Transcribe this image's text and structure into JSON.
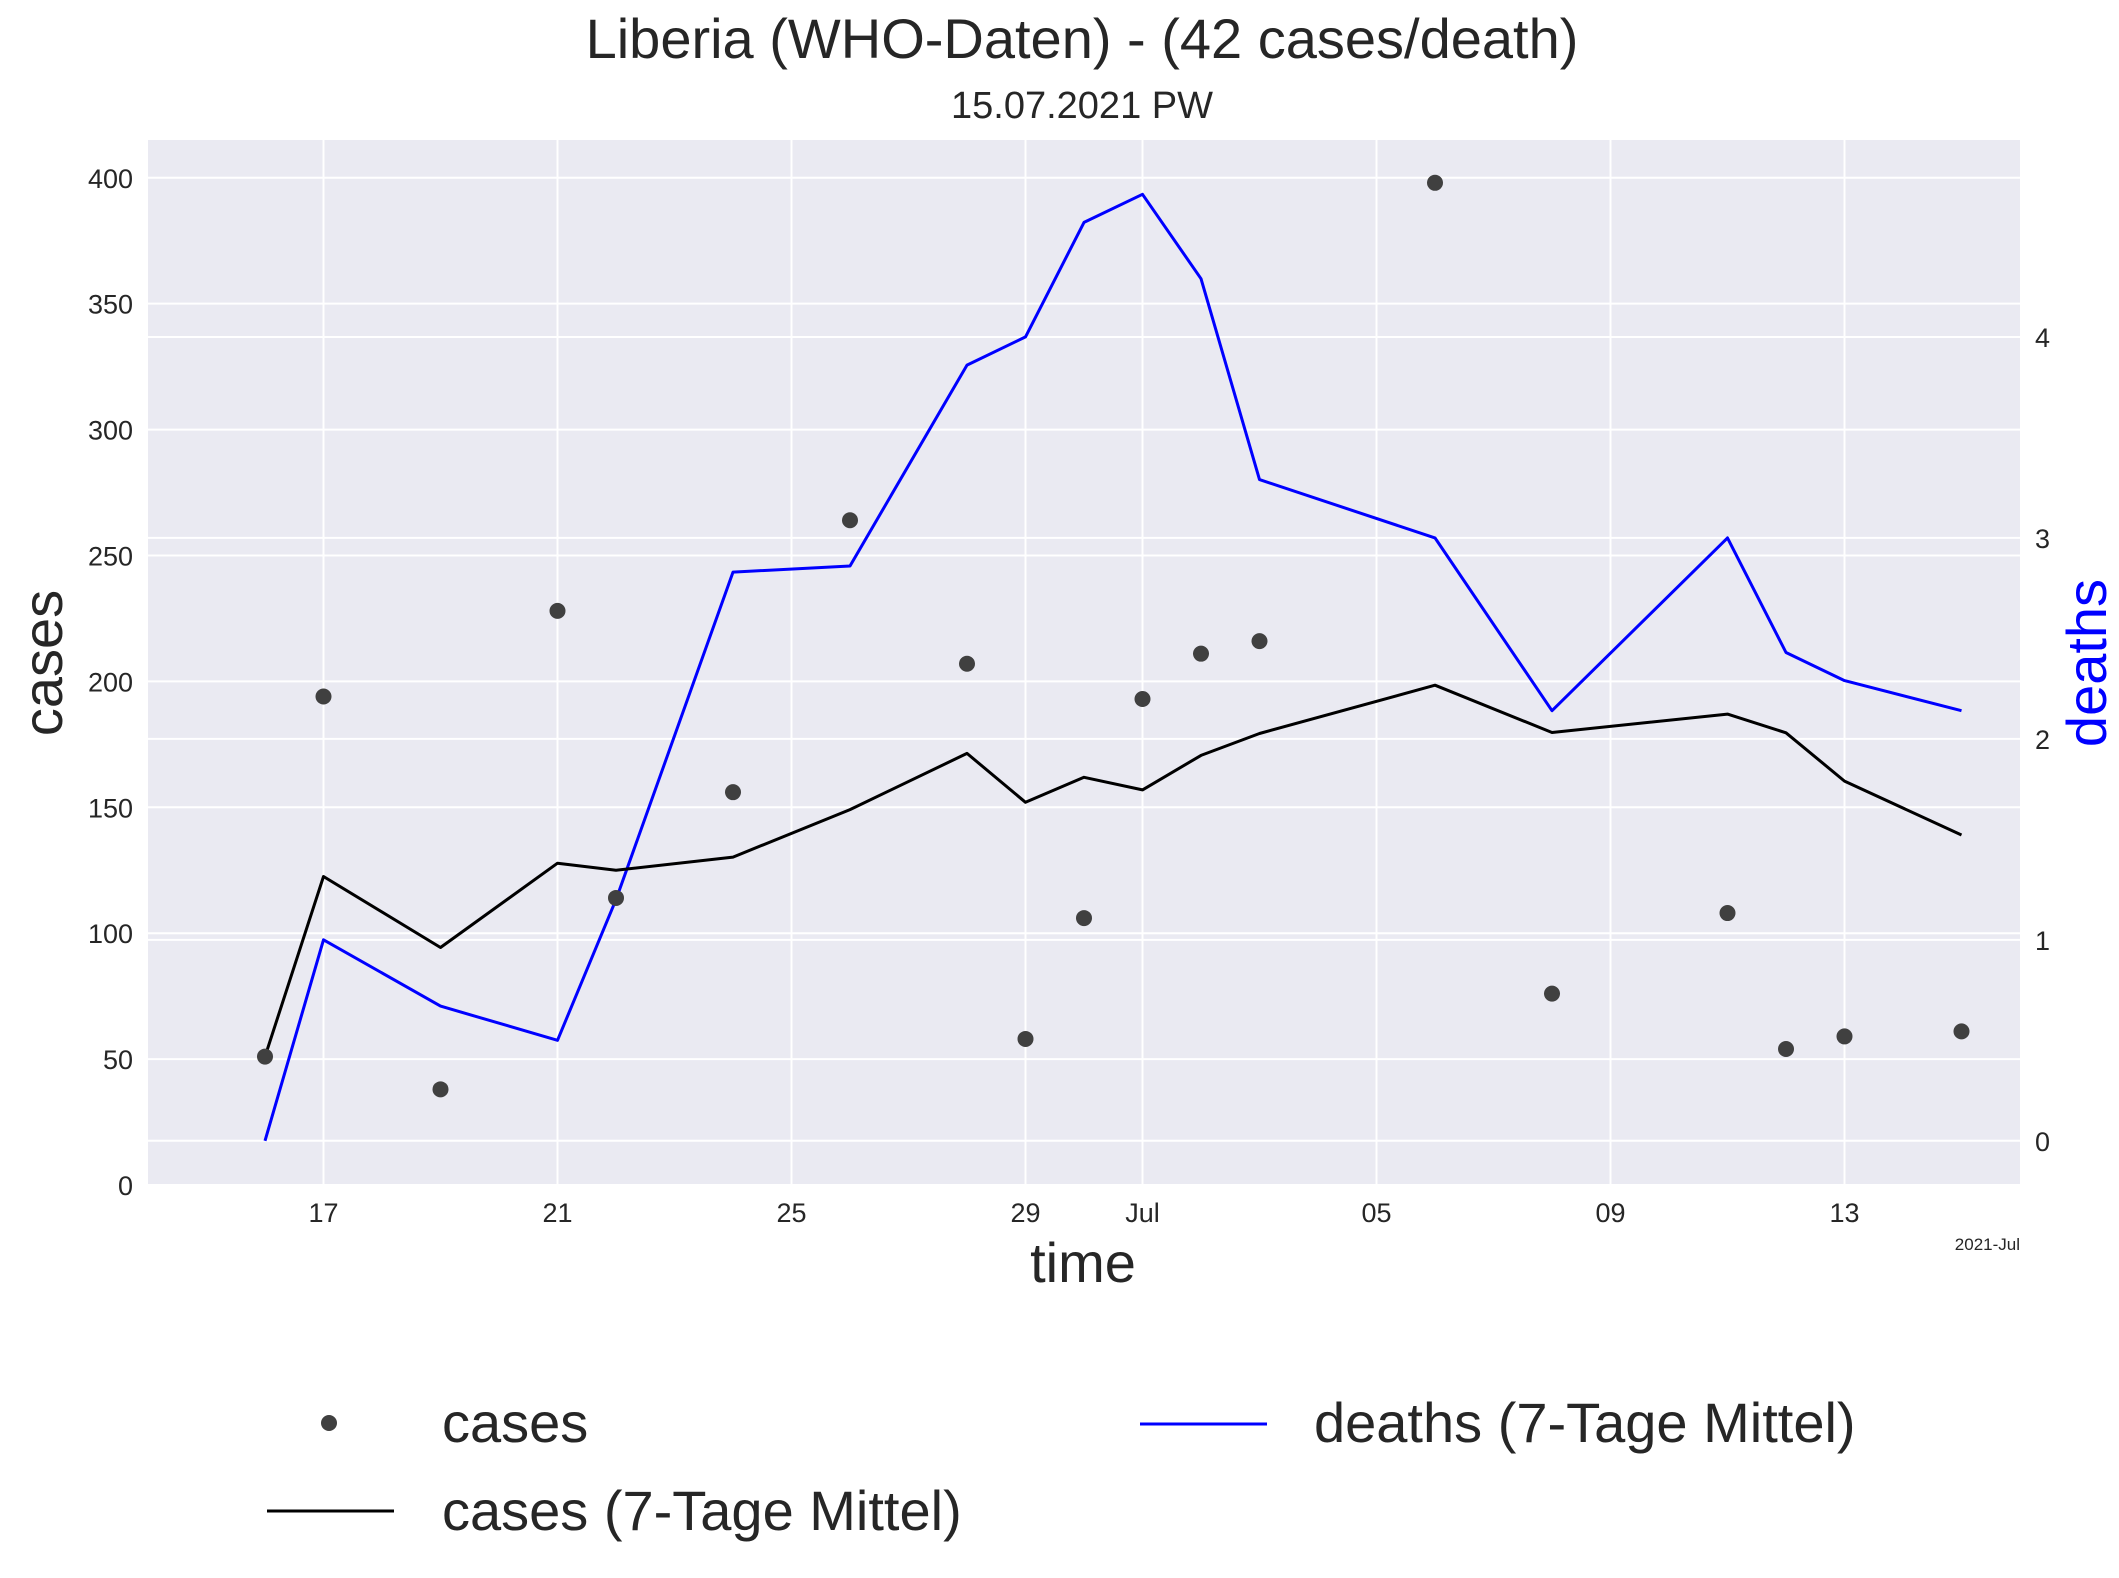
{
  "chart_data": {
    "type": "line",
    "title": "Liberia (WHO-Daten) - (42 cases/death)",
    "subtitle": "15.07.2021 PW",
    "xlabel": "time",
    "ylabel": "cases",
    "y2label": "deaths",
    "x_offset_label": "2021-Jul",
    "grid": true,
    "legend_placement": "bottom",
    "colors": {
      "background": "#eaeaf2",
      "grid": "#ffffff",
      "cases_points": "#404040",
      "cases_line": "#000000",
      "deaths_line": "#0000ff",
      "y2label": "#0000ff"
    },
    "xlim": [
      "2021-06-14",
      "2021-07-16"
    ],
    "ylim": [
      0,
      415
    ],
    "y2lim": [
      -0.22,
      4.98
    ],
    "x_ticks": [
      {
        "date": "2021-06-17",
        "label": "17"
      },
      {
        "date": "2021-06-21",
        "label": "21"
      },
      {
        "date": "2021-06-25",
        "label": "25"
      },
      {
        "date": "2021-06-29",
        "label": "29"
      },
      {
        "date": "2021-07-01",
        "label": "Jul"
      },
      {
        "date": "2021-07-05",
        "label": "05"
      },
      {
        "date": "2021-07-09",
        "label": "09"
      },
      {
        "date": "2021-07-13",
        "label": "13"
      }
    ],
    "y_ticks": [
      0,
      50,
      100,
      150,
      200,
      250,
      300,
      350,
      400
    ],
    "y2_ticks": [
      0,
      1,
      2,
      3,
      4
    ],
    "series": [
      {
        "name": "cases",
        "kind": "scatter",
        "x": [
          "2021-06-16",
          "2021-06-17",
          "2021-06-19",
          "2021-06-21",
          "2021-06-22",
          "2021-06-24",
          "2021-06-26",
          "2021-06-28",
          "2021-06-29",
          "2021-06-30",
          "2021-07-01",
          "2021-07-02",
          "2021-07-03",
          "2021-07-06",
          "2021-07-08",
          "2021-07-11",
          "2021-07-12",
          "2021-07-13",
          "2021-07-15"
        ],
        "values": [
          51,
          194,
          38,
          228,
          114,
          156,
          264,
          207,
          58,
          106,
          193,
          211,
          216,
          398,
          76,
          108,
          54,
          59,
          61
        ]
      },
      {
        "name": "cases (7-Tage Mittel)",
        "kind": "line",
        "x": [
          "2021-06-16",
          "2021-06-17",
          "2021-06-19",
          "2021-06-21",
          "2021-06-22",
          "2021-06-24",
          "2021-06-26",
          "2021-06-28",
          "2021-06-29",
          "2021-06-30",
          "2021-07-01",
          "2021-07-02",
          "2021-07-03",
          "2021-07-06",
          "2021-07-08",
          "2021-07-11",
          "2021-07-12",
          "2021-07-13",
          "2021-07-15"
        ],
        "values": [
          51,
          122.5,
          94.3,
          127.8,
          125,
          130.2,
          149.1,
          171.4,
          152,
          161.9,
          156.9,
          170.6,
          179.3,
          198.5,
          179.7,
          187,
          179.6,
          160.4,
          139
        ]
      },
      {
        "name": "deaths (7-Tage Mittel)",
        "kind": "line",
        "axis": "y2",
        "x": [
          "2021-06-16",
          "2021-06-17",
          "2021-06-19",
          "2021-06-21",
          "2021-06-22",
          "2021-06-24",
          "2021-06-26",
          "2021-06-28",
          "2021-06-29",
          "2021-06-30",
          "2021-07-01",
          "2021-07-02",
          "2021-07-03",
          "2021-07-06",
          "2021-07-08",
          "2021-07-11",
          "2021-07-12",
          "2021-07-13",
          "2021-07-15"
        ],
        "values": [
          0,
          1,
          0.67,
          0.5,
          1.2,
          2.83,
          2.86,
          3.86,
          4,
          4.57,
          4.71,
          4.29,
          3.29,
          3,
          2.14,
          3,
          2.43,
          2.29,
          2.14
        ]
      }
    ],
    "legend": [
      {
        "label": "cases",
        "series": 0
      },
      {
        "label": "cases (7-Tage Mittel)",
        "series": 1
      },
      {
        "label": "deaths (7-Tage Mittel)",
        "series": 2
      }
    ]
  }
}
